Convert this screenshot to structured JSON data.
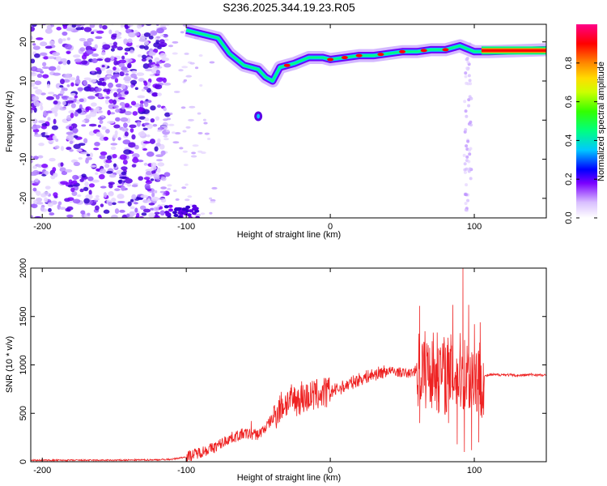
{
  "title": "S236.2025.344.19.23.R05",
  "chart_data": [
    {
      "type": "heatmap",
      "title": "S236.2025.344.19.23.R05",
      "xlabel": "Height of straight line (km)",
      "ylabel": "Frequency (Hz)",
      "xlim": [
        -208,
        150
      ],
      "ylim": [
        -25,
        24.5
      ],
      "xticks": [
        -200,
        -100,
        0,
        100
      ],
      "yticks": [
        -20,
        -10,
        0,
        10,
        20
      ],
      "grid": false,
      "ridge": {
        "description_points": [
          {
            "x": -100,
            "y": 23
          },
          {
            "x": -78,
            "y": 21
          },
          {
            "x": -70,
            "y": 17
          },
          {
            "x": -60,
            "y": 14
          },
          {
            "x": -50,
            "y": 13
          },
          {
            "x": -45,
            "y": 11
          },
          {
            "x": -40,
            "y": 10
          },
          {
            "x": -35,
            "y": 13.5
          },
          {
            "x": -25,
            "y": 14.5
          },
          {
            "x": -15,
            "y": 16
          },
          {
            "x": -5,
            "y": 16
          },
          {
            "x": 0,
            "y": 15.5
          },
          {
            "x": 10,
            "y": 16
          },
          {
            "x": 20,
            "y": 16.5
          },
          {
            "x": 30,
            "y": 16.5
          },
          {
            "x": 40,
            "y": 17
          },
          {
            "x": 50,
            "y": 17.5
          },
          {
            "x": 60,
            "y": 17.5
          },
          {
            "x": 70,
            "y": 18
          },
          {
            "x": 80,
            "y": 18
          },
          {
            "x": 85,
            "y": 18.5
          },
          {
            "x": 90,
            "y": 19
          },
          {
            "x": 100,
            "y": 17.5
          },
          {
            "x": 110,
            "y": 17.5
          },
          {
            "x": 150,
            "y": 18
          }
        ]
      },
      "colorbar": {
        "label": "Normalized spectral amplitude",
        "range": [
          0.0,
          1.0
        ],
        "ticks": [
          "0.0",
          "0.2",
          "0.4",
          "0.6",
          "0.8"
        ],
        "tick_values": [
          0.0,
          0.2,
          0.4,
          0.6,
          0.8
        ],
        "colors": [
          "#ffffff",
          "#c9a6ff",
          "#7a00ff",
          "#0000ff",
          "#00c8ff",
          "#00ff66",
          "#66ff00",
          "#ffff00",
          "#ff8800",
          "#ff0000",
          "#ff0088"
        ]
      }
    },
    {
      "type": "line",
      "xlabel": "Height of straight line (km)",
      "ylabel": "SNR (10 * v/v)",
      "xlim": [
        -208,
        150
      ],
      "ylim": [
        0,
        2000
      ],
      "xticks": [
        -200,
        -100,
        0,
        100
      ],
      "yticks": [
        0,
        500,
        1000,
        1500,
        2000
      ],
      "grid": false,
      "series": [
        {
          "name": "SNR",
          "color": "#ee2222",
          "points": [
            [
              -208,
              15
            ],
            [
              -180,
              15
            ],
            [
              -150,
              15
            ],
            [
              -120,
              20
            ],
            [
              -110,
              25
            ],
            [
              -100,
              50
            ],
            [
              -90,
              100
            ],
            [
              -80,
              150
            ],
            [
              -70,
              240
            ],
            [
              -60,
              290
            ],
            [
              -50,
              280
            ],
            [
              -45,
              350
            ],
            [
              -40,
              450
            ],
            [
              -35,
              560
            ],
            [
              -30,
              620
            ],
            [
              -20,
              650
            ],
            [
              -10,
              690
            ],
            [
              0,
              720
            ],
            [
              10,
              780
            ],
            [
              20,
              850
            ],
            [
              30,
              900
            ],
            [
              40,
              940
            ],
            [
              50,
              920
            ],
            [
              55,
              910
            ],
            [
              60,
              950
            ],
            [
              70,
              960
            ],
            [
              80,
              900
            ],
            [
              90,
              920
            ],
            [
              100,
              880
            ],
            [
              105,
              870
            ],
            [
              110,
              895
            ],
            [
              120,
              900
            ],
            [
              130,
              890
            ],
            [
              140,
              900
            ],
            [
              150,
              890
            ]
          ],
          "peaks": [
            [
              -55,
              420
            ],
            [
              -30,
              620
            ],
            [
              -20,
              830
            ],
            [
              -15,
              720
            ],
            [
              62,
              1610
            ],
            [
              75,
              1170
            ],
            [
              85,
              1620
            ],
            [
              92,
              2000
            ],
            [
              96,
              1620
            ],
            [
              100,
              1420
            ],
            [
              104,
              1440
            ]
          ],
          "dips": [
            [
              62,
              400
            ],
            [
              75,
              500
            ],
            [
              82,
              400
            ],
            [
              88,
              180
            ],
            [
              93,
              100
            ],
            [
              98,
              120
            ],
            [
              103,
              200
            ]
          ]
        }
      ]
    }
  ]
}
